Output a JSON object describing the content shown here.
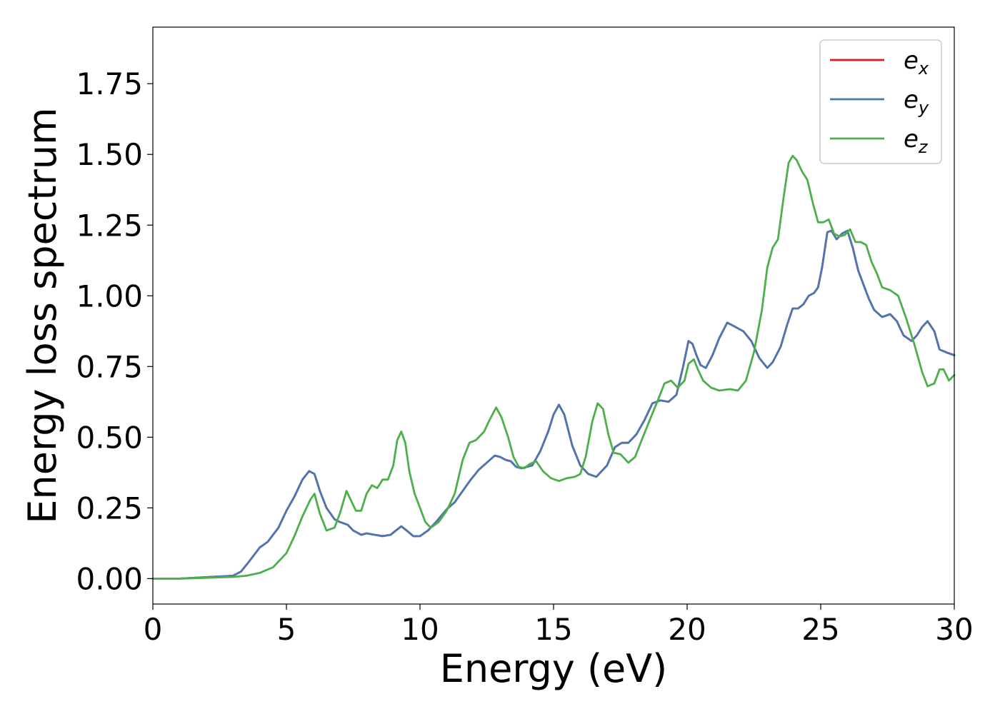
{
  "chart_data": {
    "type": "line",
    "xlabel": "Energy (eV)",
    "ylabel": "Energy loss spectrum",
    "xlim": [
      0,
      30
    ],
    "ylim": [
      -0.09,
      1.95
    ],
    "xticks": [
      "0",
      "5",
      "10",
      "15",
      "20",
      "25",
      "30"
    ],
    "yticks": [
      "0.00",
      "0.25",
      "0.50",
      "0.75",
      "1.00",
      "1.25",
      "1.50",
      "1.75"
    ],
    "grid": false,
    "legend_position": "top-right",
    "series": [
      {
        "name": "e",
        "sub": "x",
        "color": "#e41a1c",
        "x": [
          0,
          1,
          2,
          3,
          3.3,
          3.6,
          4.0,
          4.3,
          4.7,
          5.0,
          5.3,
          5.6,
          5.85,
          6.05,
          6.25,
          6.5,
          6.8,
          7.0,
          7.3,
          7.5,
          7.8,
          8.0,
          8.3,
          8.6,
          8.9,
          9.1,
          9.3,
          9.5,
          9.75,
          10.0,
          10.3,
          10.6,
          11.0,
          11.3,
          11.6,
          11.9,
          12.2,
          12.5,
          12.8,
          13.0,
          13.2,
          13.4,
          13.6,
          13.8,
          14.0,
          14.2,
          14.5,
          14.8,
          15.0,
          15.2,
          15.4,
          15.7,
          16.0,
          16.3,
          16.6,
          17.0,
          17.3,
          17.55,
          17.8,
          18.1,
          18.4,
          18.7,
          19.0,
          19.3,
          19.6,
          19.85,
          20.05,
          20.2,
          20.35,
          20.5,
          20.7,
          20.95,
          21.2,
          21.5,
          21.8,
          22.1,
          22.4,
          22.7,
          23.0,
          23.2,
          23.5,
          23.75,
          23.95,
          24.15,
          24.35,
          24.55,
          24.75,
          24.9,
          25.05,
          25.25,
          25.4,
          25.6,
          25.8,
          26.0,
          26.2,
          26.4,
          26.6,
          26.8,
          27.0,
          27.3,
          27.6,
          27.85,
          28.1,
          28.4,
          28.6,
          28.8,
          29.0,
          29.25,
          29.45,
          29.7,
          30.0
        ],
        "y": [
          0.0,
          0.0,
          0.005,
          0.01,
          0.025,
          0.06,
          0.11,
          0.13,
          0.18,
          0.24,
          0.29,
          0.35,
          0.38,
          0.37,
          0.31,
          0.25,
          0.21,
          0.2,
          0.19,
          0.17,
          0.155,
          0.16,
          0.155,
          0.15,
          0.155,
          0.17,
          0.185,
          0.17,
          0.15,
          0.15,
          0.17,
          0.2,
          0.245,
          0.27,
          0.31,
          0.35,
          0.385,
          0.41,
          0.435,
          0.43,
          0.42,
          0.415,
          0.395,
          0.39,
          0.395,
          0.4,
          0.45,
          0.52,
          0.58,
          0.615,
          0.58,
          0.47,
          0.4,
          0.37,
          0.36,
          0.4,
          0.465,
          0.48,
          0.48,
          0.51,
          0.56,
          0.62,
          0.63,
          0.625,
          0.65,
          0.75,
          0.84,
          0.83,
          0.79,
          0.755,
          0.745,
          0.79,
          0.85,
          0.905,
          0.89,
          0.875,
          0.84,
          0.78,
          0.745,
          0.765,
          0.82,
          0.9,
          0.955,
          0.955,
          0.97,
          1.0,
          1.01,
          1.03,
          1.1,
          1.225,
          1.23,
          1.2,
          1.22,
          1.23,
          1.17,
          1.09,
          1.04,
          0.99,
          0.95,
          0.925,
          0.935,
          0.91,
          0.86,
          0.84,
          0.86,
          0.89,
          0.91,
          0.875,
          0.81,
          0.8,
          0.79
        ]
      },
      {
        "name": "e",
        "sub": "y",
        "color": "#4a77b3",
        "x": [
          0,
          1,
          2,
          3,
          3.3,
          3.6,
          4.0,
          4.3,
          4.7,
          5.0,
          5.3,
          5.6,
          5.85,
          6.05,
          6.25,
          6.5,
          6.8,
          7.0,
          7.3,
          7.5,
          7.8,
          8.0,
          8.3,
          8.6,
          8.9,
          9.1,
          9.3,
          9.5,
          9.75,
          10.0,
          10.3,
          10.6,
          11.0,
          11.3,
          11.6,
          11.9,
          12.2,
          12.5,
          12.8,
          13.0,
          13.2,
          13.4,
          13.6,
          13.8,
          14.0,
          14.2,
          14.5,
          14.8,
          15.0,
          15.2,
          15.4,
          15.7,
          16.0,
          16.3,
          16.6,
          17.0,
          17.3,
          17.55,
          17.8,
          18.1,
          18.4,
          18.7,
          19.0,
          19.3,
          19.6,
          19.85,
          20.05,
          20.2,
          20.35,
          20.5,
          20.7,
          20.95,
          21.2,
          21.5,
          21.8,
          22.1,
          22.4,
          22.7,
          23.0,
          23.2,
          23.5,
          23.75,
          23.95,
          24.15,
          24.35,
          24.55,
          24.75,
          24.9,
          25.05,
          25.25,
          25.4,
          25.6,
          25.8,
          26.0,
          26.2,
          26.4,
          26.6,
          26.8,
          27.0,
          27.3,
          27.6,
          27.85,
          28.1,
          28.4,
          28.6,
          28.8,
          29.0,
          29.25,
          29.45,
          29.7,
          30.0
        ],
        "y": [
          0.0,
          0.0,
          0.005,
          0.01,
          0.025,
          0.06,
          0.11,
          0.13,
          0.18,
          0.24,
          0.29,
          0.35,
          0.38,
          0.37,
          0.31,
          0.25,
          0.21,
          0.2,
          0.19,
          0.17,
          0.155,
          0.16,
          0.155,
          0.15,
          0.155,
          0.17,
          0.185,
          0.17,
          0.15,
          0.15,
          0.17,
          0.2,
          0.245,
          0.27,
          0.31,
          0.35,
          0.385,
          0.41,
          0.435,
          0.43,
          0.42,
          0.415,
          0.395,
          0.39,
          0.395,
          0.4,
          0.45,
          0.52,
          0.58,
          0.615,
          0.58,
          0.47,
          0.4,
          0.37,
          0.36,
          0.4,
          0.465,
          0.48,
          0.48,
          0.51,
          0.56,
          0.62,
          0.63,
          0.625,
          0.65,
          0.75,
          0.84,
          0.83,
          0.79,
          0.755,
          0.745,
          0.79,
          0.85,
          0.905,
          0.89,
          0.875,
          0.84,
          0.78,
          0.745,
          0.765,
          0.82,
          0.9,
          0.955,
          0.955,
          0.97,
          1.0,
          1.01,
          1.03,
          1.1,
          1.225,
          1.23,
          1.2,
          1.22,
          1.23,
          1.17,
          1.09,
          1.04,
          0.99,
          0.95,
          0.925,
          0.935,
          0.91,
          0.86,
          0.84,
          0.86,
          0.89,
          0.91,
          0.875,
          0.81,
          0.8,
          0.79
        ]
      },
      {
        "name": "e",
        "sub": "z",
        "color": "#4daf4a",
        "x": [
          0,
          1,
          2,
          3,
          3.5,
          4.0,
          4.5,
          5.0,
          5.3,
          5.6,
          5.9,
          6.05,
          6.25,
          6.5,
          6.8,
          7.0,
          7.25,
          7.45,
          7.6,
          7.8,
          8.0,
          8.2,
          8.4,
          8.6,
          8.8,
          9.0,
          9.15,
          9.3,
          9.45,
          9.6,
          9.8,
          10.0,
          10.2,
          10.4,
          10.7,
          11.0,
          11.3,
          11.6,
          11.85,
          12.1,
          12.4,
          12.6,
          12.85,
          13.05,
          13.3,
          13.5,
          13.7,
          13.9,
          14.1,
          14.35,
          14.6,
          14.9,
          15.2,
          15.5,
          15.8,
          16.0,
          16.2,
          16.45,
          16.65,
          16.85,
          17.05,
          17.25,
          17.5,
          17.8,
          18.05,
          18.3,
          18.6,
          18.9,
          19.15,
          19.4,
          19.65,
          19.9,
          20.05,
          20.25,
          20.4,
          20.6,
          20.9,
          21.2,
          21.6,
          21.9,
          22.2,
          22.5,
          22.8,
          23.0,
          23.2,
          23.4,
          23.6,
          23.8,
          23.95,
          24.1,
          24.3,
          24.5,
          24.7,
          24.9,
          25.1,
          25.3,
          25.5,
          25.7,
          25.9,
          26.1,
          26.3,
          26.5,
          26.7,
          26.9,
          27.1,
          27.3,
          27.6,
          27.9,
          28.2,
          28.5,
          28.8,
          29.0,
          29.25,
          29.45,
          29.6,
          29.8,
          30.0
        ],
        "y": [
          0.0,
          0.0,
          0.003,
          0.006,
          0.01,
          0.02,
          0.04,
          0.09,
          0.15,
          0.22,
          0.28,
          0.3,
          0.23,
          0.17,
          0.18,
          0.23,
          0.31,
          0.27,
          0.24,
          0.24,
          0.3,
          0.33,
          0.32,
          0.35,
          0.35,
          0.4,
          0.49,
          0.52,
          0.48,
          0.38,
          0.3,
          0.25,
          0.2,
          0.18,
          0.2,
          0.24,
          0.3,
          0.42,
          0.48,
          0.49,
          0.52,
          0.56,
          0.605,
          0.57,
          0.5,
          0.43,
          0.395,
          0.39,
          0.405,
          0.415,
          0.38,
          0.355,
          0.345,
          0.355,
          0.36,
          0.37,
          0.43,
          0.555,
          0.62,
          0.6,
          0.51,
          0.445,
          0.44,
          0.41,
          0.43,
          0.49,
          0.56,
          0.63,
          0.69,
          0.7,
          0.675,
          0.7,
          0.76,
          0.775,
          0.74,
          0.7,
          0.675,
          0.665,
          0.67,
          0.665,
          0.7,
          0.8,
          0.95,
          1.1,
          1.17,
          1.2,
          1.34,
          1.47,
          1.495,
          1.48,
          1.44,
          1.41,
          1.33,
          1.26,
          1.26,
          1.27,
          1.22,
          1.21,
          1.215,
          1.235,
          1.19,
          1.19,
          1.18,
          1.12,
          1.08,
          1.03,
          1.02,
          1.0,
          0.92,
          0.83,
          0.73,
          0.68,
          0.69,
          0.74,
          0.74,
          0.7,
          0.72
        ]
      }
    ]
  }
}
